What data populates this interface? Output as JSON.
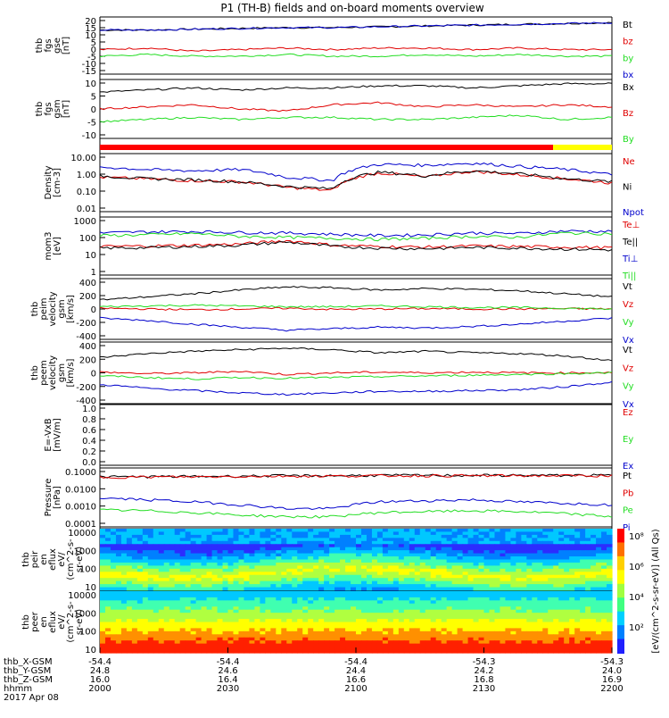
{
  "title": "P1 (TH-B) fields and on-board moments overview",
  "colors": {
    "black": "#000000",
    "red": "#e00000",
    "green": "#22dd22",
    "blue": "#0000cc",
    "yellow": "#ffff00",
    "red_bar": "#ff0000"
  },
  "chart_data": [
    {
      "type": "line",
      "panel": "fgs",
      "ylabel": [
        "thb",
        "fgs",
        "gse",
        "[nT]"
      ],
      "yticks": [
        "20",
        "15",
        "10",
        "5",
        "0",
        "-5",
        "-10",
        "-15"
      ],
      "ylim": [
        -15,
        20
      ],
      "series": [
        {
          "name": "Bt",
          "color": "black",
          "values": [
            12,
            12,
            12.5,
            13,
            13.5,
            13.5,
            14,
            14.5,
            15,
            15.5,
            16,
            16.5
          ]
        },
        {
          "name": "bz",
          "color": "red",
          "values": [
            0,
            1,
            -1,
            0,
            1,
            0,
            1,
            1,
            0,
            1,
            0,
            0
          ]
        },
        {
          "name": "by",
          "color": "green",
          "values": [
            -4,
            -3,
            -4,
            -4,
            -3,
            -4,
            -4,
            -3,
            -4,
            -3,
            -4,
            -4
          ]
        },
        {
          "name": "bx",
          "color": "blue",
          "values": [
            12,
            12,
            12.5,
            13,
            13.5,
            13.5,
            14,
            14.5,
            15,
            15.5,
            16,
            16.5
          ]
        }
      ]
    },
    {
      "type": "line",
      "panel": "fgs_gsm",
      "ylabel": [
        "thb",
        "fgs",
        "gsm",
        "[nT]"
      ],
      "yticks": [
        "10",
        "5",
        "0",
        "-5",
        "-10"
      ],
      "ylim": [
        -14,
        14
      ],
      "series": [
        {
          "name": "Bx",
          "color": "black",
          "values": [
            8,
            9,
            10,
            9,
            10,
            10,
            11,
            11,
            10,
            11,
            12,
            12
          ]
        },
        {
          "name": "Bz",
          "color": "red",
          "values": [
            0,
            1,
            2,
            0,
            -1,
            2,
            3,
            1,
            2,
            1,
            2,
            1
          ]
        },
        {
          "name": "By",
          "color": "green",
          "values": [
            -6,
            -5,
            -4,
            -5,
            -4,
            -4,
            -5,
            -5,
            -4,
            -3,
            -5,
            -4
          ]
        }
      ]
    },
    {
      "type": "line",
      "panel": "density",
      "log": true,
      "ylabel": [
        "Density",
        "[cm-3]"
      ],
      "yticks": [
        "10.00",
        "1.00",
        "0.10",
        "0.01"
      ],
      "ylim": [
        0.01,
        10
      ],
      "series": [
        {
          "name": "Ne",
          "color": "red",
          "values": [
            0.6,
            0.5,
            0.4,
            0.35,
            0.18,
            0.12,
            1.0,
            0.6,
            1.2,
            0.8,
            0.5,
            0.3
          ]
        },
        {
          "name": "Ni",
          "color": "black",
          "values": [
            0.7,
            0.5,
            0.45,
            0.35,
            0.2,
            0.15,
            1.1,
            0.7,
            1.3,
            0.9,
            0.5,
            0.35
          ]
        },
        {
          "name": "Npot",
          "color": "blue",
          "values": [
            2.0,
            1.5,
            1.3,
            1.5,
            0.6,
            0.4,
            2.8,
            2.5,
            3.2,
            2.2,
            1.5,
            0.8
          ]
        }
      ]
    },
    {
      "type": "line",
      "panel": "temperature",
      "log": true,
      "ylabel": [
        "mom3",
        "[eV]"
      ],
      "yticks": [
        "1000",
        "100",
        "10",
        "1"
      ],
      "ylim": [
        1,
        1000
      ],
      "series": [
        {
          "name": "Te⊥",
          "color": "red",
          "values": [
            30,
            32,
            35,
            40,
            60,
            35,
            30,
            28,
            32,
            30,
            28,
            26
          ]
        },
        {
          "name": "Te||",
          "color": "black",
          "values": [
            25,
            26,
            30,
            35,
            50,
            30,
            25,
            23,
            27,
            25,
            22,
            20
          ]
        },
        {
          "name": "Ti⊥",
          "color": "blue",
          "values": [
            150,
            170,
            180,
            160,
            150,
            130,
            110,
            120,
            150,
            140,
            190,
            180
          ]
        },
        {
          "name": "Ti||",
          "color": "green",
          "values": [
            110,
            120,
            140,
            100,
            90,
            80,
            70,
            80,
            100,
            90,
            150,
            140
          ]
        }
      ]
    },
    {
      "type": "line",
      "panel": "peim_velocity",
      "ylabel": [
        "thb",
        "peim",
        "velocity",
        "gsm",
        "[km/s]"
      ],
      "yticks": [
        "400",
        "200",
        "0",
        "-200",
        "-400"
      ],
      "ylim": [
        -400,
        400
      ],
      "series": [
        {
          "name": "Vt",
          "color": "black",
          "values": [
            120,
            160,
            200,
            250,
            290,
            280,
            250,
            270,
            260,
            240,
            200,
            160
          ]
        },
        {
          "name": "Vz",
          "color": "red",
          "values": [
            10,
            0,
            -10,
            0,
            10,
            -5,
            0,
            5,
            0,
            0,
            5,
            0
          ]
        },
        {
          "name": "Vy",
          "color": "green",
          "values": [
            30,
            40,
            50,
            40,
            30,
            30,
            40,
            30,
            20,
            20,
            10,
            0
          ]
        },
        {
          "name": "Vx",
          "color": "blue",
          "values": [
            -120,
            -150,
            -200,
            -240,
            -280,
            -260,
            -240,
            -250,
            -230,
            -200,
            -160,
            -120
          ]
        }
      ]
    },
    {
      "type": "line",
      "panel": "peem_velocity",
      "ylabel": [
        "thb",
        "peem",
        "velocity",
        "gsm",
        "[km/s]"
      ],
      "yticks": [
        "400",
        "200",
        "0",
        "-200",
        "-400"
      ],
      "ylim": [
        -400,
        400
      ],
      "series": [
        {
          "name": "Vt",
          "color": "black",
          "values": [
            200,
            250,
            280,
            300,
            320,
            300,
            260,
            280,
            260,
            250,
            220,
            160
          ]
        },
        {
          "name": "Vz",
          "color": "red",
          "values": [
            10,
            -10,
            0,
            20,
            -20,
            0,
            10,
            0,
            10,
            0,
            0,
            5
          ]
        },
        {
          "name": "Vy",
          "color": "green",
          "values": [
            -40,
            -60,
            -80,
            -60,
            -70,
            -60,
            -50,
            -40,
            -30,
            -20,
            -10,
            0
          ]
        },
        {
          "name": "Vx",
          "color": "blue",
          "values": [
            -150,
            -200,
            -230,
            -260,
            -280,
            -260,
            -240,
            -240,
            -230,
            -220,
            -180,
            -120
          ]
        }
      ]
    },
    {
      "type": "line",
      "panel": "efield",
      "ylabel": [
        "E=-VxB",
        "[mV/m]"
      ],
      "yticks": [
        "1.0",
        "0.8",
        "0.6",
        "0.4",
        "0.2",
        "0.0"
      ],
      "ylim": [
        0,
        1
      ],
      "series": [
        {
          "name": "Ez",
          "color": "red",
          "values": []
        },
        {
          "name": "Ey",
          "color": "green",
          "values": []
        },
        {
          "name": "Ex",
          "color": "blue",
          "values": []
        }
      ]
    },
    {
      "type": "line",
      "panel": "pressure",
      "log": true,
      "ylabel": [
        "Pressure",
        "[nPa]"
      ],
      "yticks": [
        "0.1000",
        "0.0100",
        "0.0010",
        "0.0001"
      ],
      "ylim": [
        0.0001,
        0.3
      ],
      "series": [
        {
          "name": "Pt",
          "color": "black",
          "values": [
            0.09,
            0.092,
            0.095,
            0.1,
            0.105,
            0.105,
            0.11,
            0.11,
            0.11,
            0.11,
            0.11,
            0.11
          ]
        },
        {
          "name": "Pb",
          "color": "red",
          "values": [
            0.085,
            0.088,
            0.09,
            0.095,
            0.1,
            0.1,
            0.105,
            0.105,
            0.105,
            0.105,
            0.105,
            0.105
          ]
        },
        {
          "name": "Pe",
          "color": "green",
          "values": [
            0.001,
            0.0009,
            0.0007,
            0.0005,
            0.0004,
            0.0004,
            0.0007,
            0.0008,
            0.0009,
            0.0008,
            0.0006,
            0.0004
          ]
        },
        {
          "name": "Pi",
          "color": "blue",
          "values": [
            0.005,
            0.004,
            0.003,
            0.002,
            0.0012,
            0.0012,
            0.003,
            0.0035,
            0.004,
            0.003,
            0.0025,
            0.002
          ]
        }
      ]
    },
    {
      "type": "heatmap",
      "panel": "peir_spectrogram",
      "ylabel": [
        "thb",
        "peir",
        "en",
        "eflux",
        "eV/",
        "(cm^2-s-",
        "sr-eV)"
      ],
      "yticks": [
        "10000",
        "1000",
        "100",
        "10"
      ]
    },
    {
      "type": "heatmap",
      "panel": "peer_spectrogram",
      "ylabel": [
        "thb",
        "peer",
        "en",
        "eflux",
        "eV/",
        "(cm^2-s-",
        "sr-eV)"
      ],
      "yticks": [
        "10000",
        "1000",
        "100",
        "10"
      ]
    }
  ],
  "colorbar": {
    "ticks": [
      "10⁸",
      "10⁶",
      "10⁴",
      "10²"
    ],
    "label": "[eV/(cm^2-s-sr-eV)] (All Qs)"
  },
  "x_axis": {
    "row_labels": [
      "thb_X-GSM",
      "thb_Y-GSM",
      "thb_Z-GSM",
      "hhmm",
      "2017 Apr 08"
    ],
    "ticks": [
      {
        "x": "-54.4",
        "y": "24.8",
        "z": "16.0",
        "hhmm": "2000"
      },
      {
        "x": "-54.4",
        "y": "24.6",
        "z": "16.4",
        "hhmm": "2030"
      },
      {
        "x": "-54.4",
        "y": "24.4",
        "z": "16.6",
        "hhmm": "2100"
      },
      {
        "x": "-54.3",
        "y": "24.2",
        "z": "16.8",
        "hhmm": "2130"
      },
      {
        "x": "-54.3",
        "y": "24.0",
        "z": "16.9",
        "hhmm": "2200"
      }
    ]
  }
}
